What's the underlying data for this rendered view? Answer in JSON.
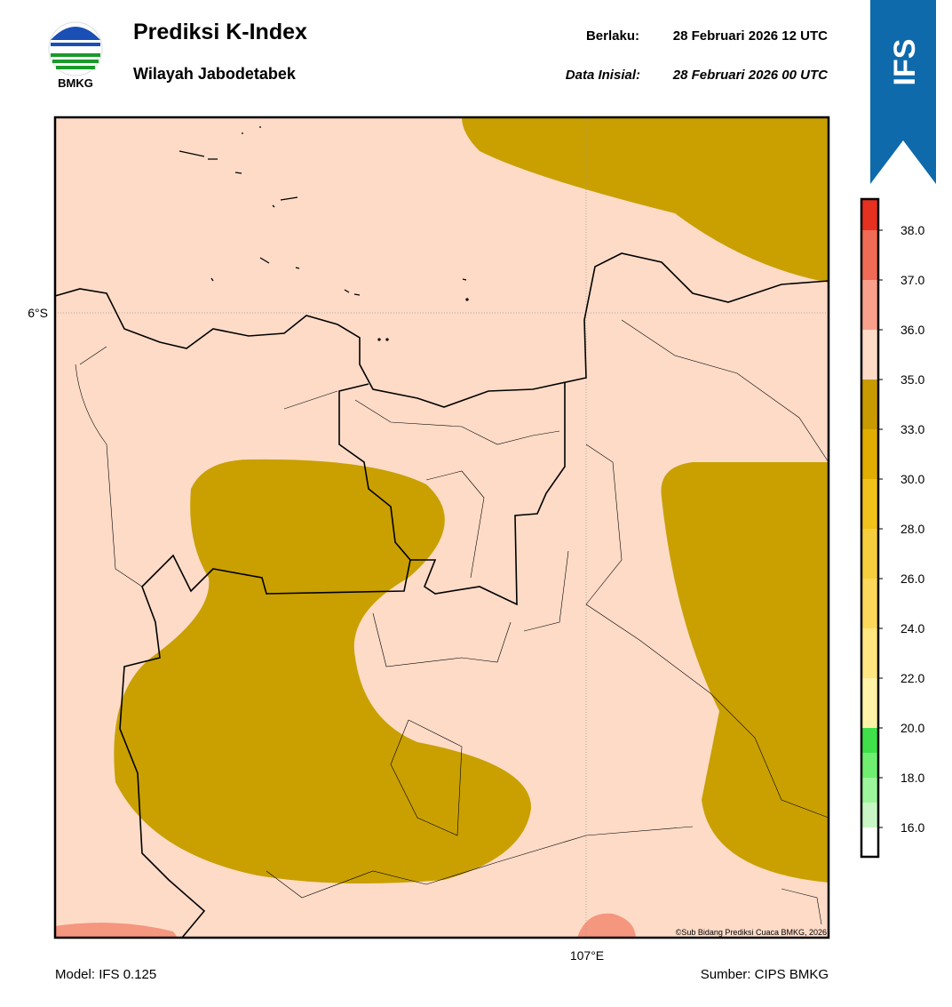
{
  "header": {
    "logo_text": "BMKG",
    "title": "Prediksi K-Index",
    "subtitle": "Wilayah Jabodetabek",
    "valid_label": "Berlaku:",
    "valid_time": "28 Februari 2026 12 UTC",
    "init_label": "Data Inisial:",
    "init_time": "28 Februari 2026 00 UTC",
    "badge": "IFS"
  },
  "map": {
    "lat_label": "6°S",
    "lon_label": "107°E",
    "credit": "©Sub Bidang Prediksi Cuaca BMKG, 2026"
  },
  "colorbar": {
    "labels": [
      "16.0",
      "18.0",
      "20.0",
      "22.0",
      "24.0",
      "26.0",
      "28.0",
      "30.0",
      "33.0",
      "35.0",
      "36.0",
      "37.0",
      "38.0"
    ]
  },
  "footer": {
    "model": "Model: IFS 0.125",
    "source": "Sumber: CIPS BMKG"
  }
}
